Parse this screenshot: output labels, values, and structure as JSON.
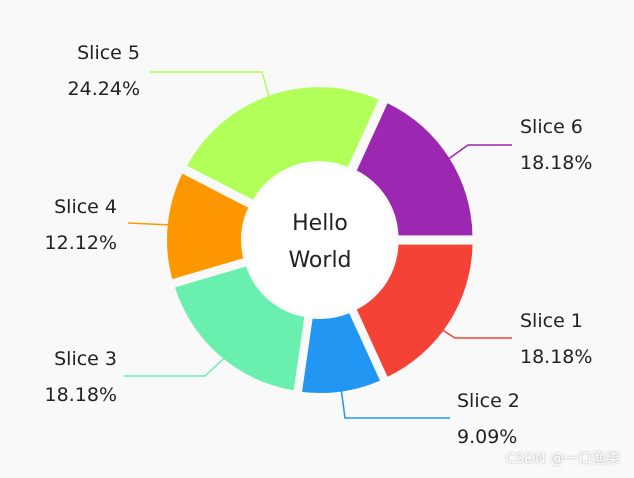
{
  "chart_data": {
    "type": "pie",
    "center_text": [
      "Hello",
      "World"
    ],
    "slices": [
      {
        "label": "Slice 1",
        "percent_label": "18.18%",
        "value": 18.18,
        "color": "#f44336"
      },
      {
        "label": "Slice 2",
        "percent_label": "9.09%",
        "value": 9.09,
        "color": "#2196f3"
      },
      {
        "label": "Slice 3",
        "percent_label": "18.18%",
        "value": 18.18,
        "color": "#69f0ae"
      },
      {
        "label": "Slice 4",
        "percent_label": "12.12%",
        "value": 12.12,
        "color": "#ff9800"
      },
      {
        "label": "Slice 5",
        "percent_label": "24.24%",
        "value": 24.24,
        "color": "#b2ff59"
      },
      {
        "label": "Slice 6",
        "percent_label": "18.18%",
        "value": 18.18,
        "color": "#9c27b0"
      }
    ]
  },
  "watermark": "CSDN @一口渔柒"
}
